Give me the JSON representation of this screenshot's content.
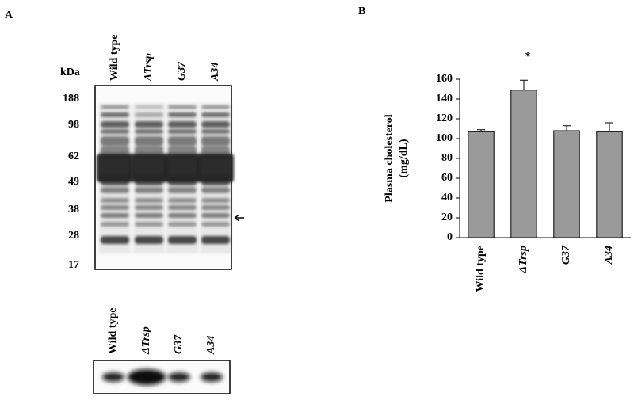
{
  "panel_a": {
    "label": "A",
    "lanes": [
      "Wild type",
      "ΔTrsp",
      "G37",
      "A34"
    ],
    "marker_unit": "kDa",
    "markers": [
      "188",
      "98",
      "62",
      "49",
      "38",
      "28",
      "17"
    ]
  },
  "panel_b_label": "B",
  "chart_data": {
    "type": "bar",
    "ylabel": [
      "Plasma cholesterol",
      "(mg/dL)"
    ],
    "categories": [
      "Wild type",
      "ΔTrsp",
      "G37",
      "A34"
    ],
    "values": [
      107,
      149,
      108,
      107
    ],
    "errors": [
      2,
      10,
      5,
      9
    ],
    "annotations": [
      "*"
    ],
    "color": "#9a9a9a",
    "ylim": [
      0,
      160
    ],
    "yticks": [
      0,
      20,
      40,
      60,
      80,
      100,
      120,
      140,
      160
    ],
    "grid": false
  }
}
